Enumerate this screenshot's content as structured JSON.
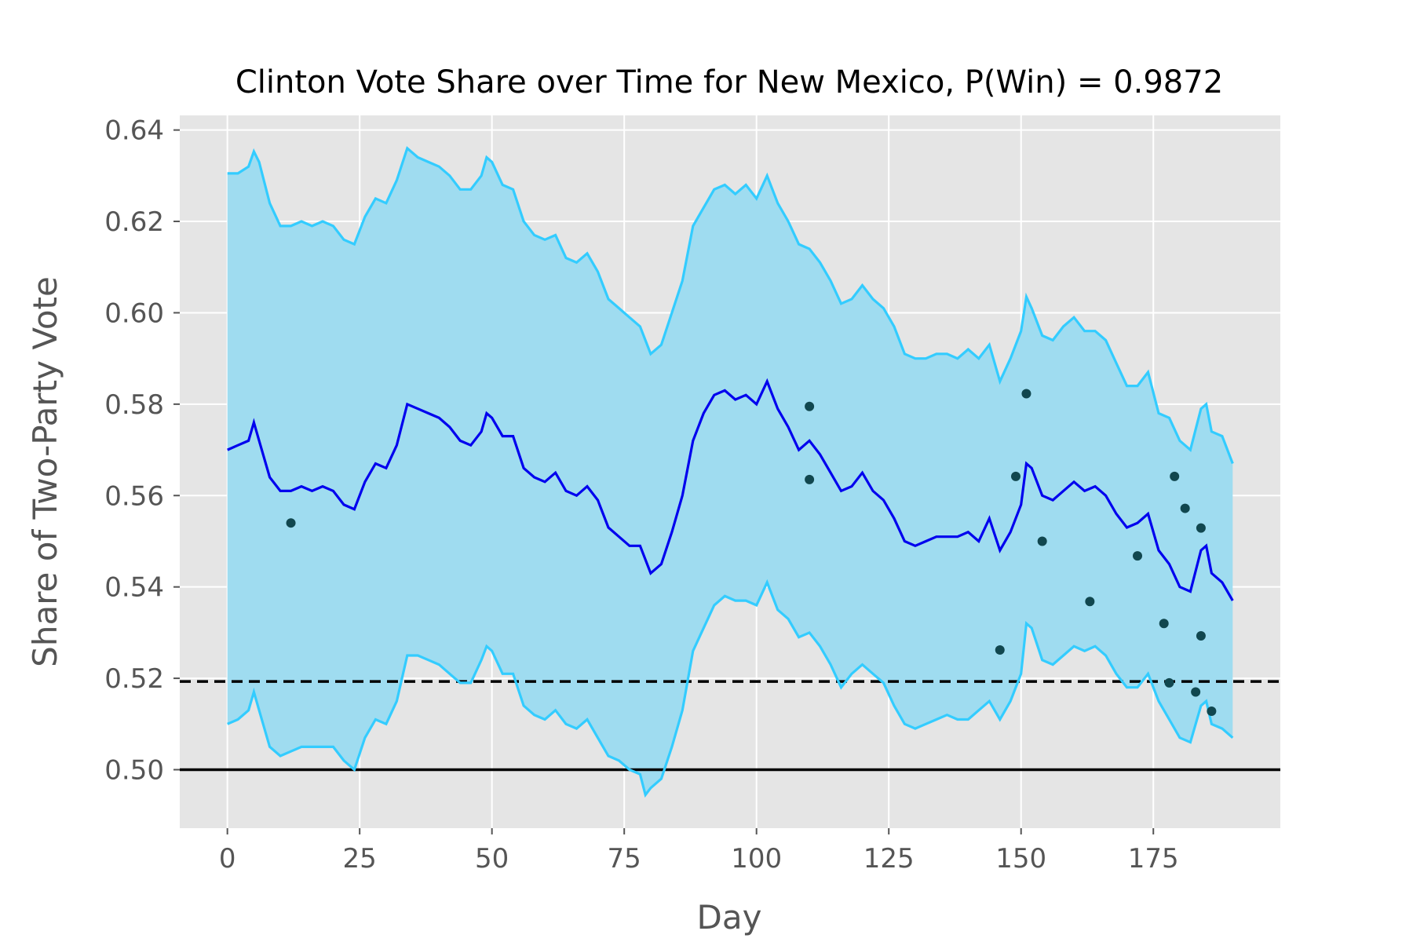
{
  "chart_data": {
    "type": "line",
    "title": "Clinton Vote Share over Time for New Mexico, P(Win) = 0.9872",
    "xlabel": "Day",
    "ylabel": "Share of Two-Party Vote",
    "xlim": [
      -9,
      199
    ],
    "ylim": [
      0.4872,
      0.6432
    ],
    "xticks": [
      0,
      25,
      50,
      75,
      100,
      125,
      150,
      175
    ],
    "yticks": [
      0.5,
      0.52,
      0.54,
      0.56,
      0.58,
      0.6,
      0.62,
      0.64
    ],
    "ytick_labels": [
      "0.50",
      "0.52",
      "0.54",
      "0.56",
      "0.58",
      "0.60",
      "0.62",
      "0.64"
    ],
    "grid": true,
    "background": "#e5e5e5",
    "colors": {
      "mean": "#0000ee",
      "band_line": "#33ccff",
      "band_fill": "#9fdcf0",
      "polls": "#11474f",
      "reference": "#000000"
    },
    "reference_lines": [
      {
        "y": 0.5,
        "style": "solid"
      },
      {
        "y": 0.5193,
        "style": "dashed"
      }
    ],
    "mean_series": {
      "x": [
        0,
        2,
        4,
        5,
        6,
        8,
        10,
        12,
        14,
        16,
        18,
        20,
        22,
        24,
        26,
        28,
        30,
        32,
        34,
        36,
        38,
        40,
        42,
        44,
        46,
        48,
        49,
        50,
        52,
        54,
        56,
        58,
        60,
        62,
        64,
        66,
        68,
        70,
        72,
        74,
        76,
        78,
        80,
        82,
        84,
        86,
        88,
        90,
        92,
        94,
        96,
        98,
        100,
        102,
        104,
        106,
        108,
        110,
        112,
        114,
        116,
        118,
        120,
        122,
        124,
        126,
        128,
        130,
        132,
        134,
        136,
        138,
        140,
        142,
        144,
        146,
        148,
        150,
        151,
        152,
        154,
        156,
        158,
        160,
        162,
        164,
        166,
        168,
        170,
        172,
        174,
        176,
        178,
        180,
        182,
        184,
        185,
        186,
        188,
        190
      ],
      "y": [
        0.57,
        0.571,
        0.572,
        0.576,
        0.572,
        0.564,
        0.561,
        0.561,
        0.562,
        0.561,
        0.562,
        0.561,
        0.558,
        0.557,
        0.563,
        0.567,
        0.566,
        0.571,
        0.58,
        0.579,
        0.578,
        0.577,
        0.575,
        0.572,
        0.571,
        0.574,
        0.578,
        0.577,
        0.573,
        0.573,
        0.566,
        0.564,
        0.563,
        0.565,
        0.561,
        0.56,
        0.562,
        0.559,
        0.553,
        0.551,
        0.549,
        0.549,
        0.543,
        0.545,
        0.552,
        0.56,
        0.572,
        0.578,
        0.582,
        0.583,
        0.581,
        0.582,
        0.58,
        0.585,
        0.579,
        0.575,
        0.57,
        0.572,
        0.569,
        0.565,
        0.561,
        0.562,
        0.565,
        0.561,
        0.559,
        0.555,
        0.55,
        0.549,
        0.55,
        0.551,
        0.551,
        0.551,
        0.552,
        0.55,
        0.555,
        0.548,
        0.552,
        0.558,
        0.567,
        0.566,
        0.56,
        0.559,
        0.561,
        0.563,
        0.561,
        0.562,
        0.56,
        0.556,
        0.553,
        0.554,
        0.556,
        0.548,
        0.545,
        0.54,
        0.539,
        0.548,
        0.549,
        0.543,
        0.541,
        0.537
      ]
    },
    "upper_series": {
      "x": [
        0,
        2,
        4,
        5,
        6,
        8,
        10,
        12,
        14,
        16,
        18,
        20,
        22,
        24,
        26,
        28,
        30,
        32,
        34,
        36,
        38,
        40,
        42,
        44,
        46,
        48,
        49,
        50,
        52,
        54,
        56,
        58,
        60,
        62,
        64,
        66,
        68,
        70,
        72,
        74,
        76,
        78,
        80,
        82,
        84,
        86,
        88,
        90,
        92,
        94,
        96,
        98,
        100,
        102,
        104,
        106,
        108,
        110,
        112,
        114,
        116,
        118,
        120,
        122,
        124,
        126,
        128,
        130,
        132,
        134,
        136,
        138,
        140,
        142,
        144,
        146,
        148,
        150,
        151,
        152,
        154,
        156,
        158,
        160,
        162,
        164,
        166,
        168,
        170,
        172,
        174,
        176,
        178,
        180,
        182,
        184,
        185,
        186,
        188,
        190
      ],
      "y": [
        0.6305,
        0.6305,
        0.632,
        0.6353,
        0.633,
        0.624,
        0.619,
        0.619,
        0.62,
        0.619,
        0.62,
        0.619,
        0.616,
        0.615,
        0.621,
        0.625,
        0.624,
        0.629,
        0.636,
        0.634,
        0.633,
        0.632,
        0.63,
        0.627,
        0.627,
        0.63,
        0.634,
        0.633,
        0.628,
        0.627,
        0.62,
        0.617,
        0.616,
        0.617,
        0.612,
        0.611,
        0.613,
        0.609,
        0.603,
        0.601,
        0.599,
        0.597,
        0.591,
        0.593,
        0.6,
        0.607,
        0.619,
        0.623,
        0.627,
        0.628,
        0.626,
        0.628,
        0.625,
        0.63,
        0.624,
        0.62,
        0.615,
        0.614,
        0.611,
        0.607,
        0.602,
        0.603,
        0.606,
        0.603,
        0.601,
        0.597,
        0.591,
        0.59,
        0.59,
        0.591,
        0.591,
        0.59,
        0.592,
        0.59,
        0.593,
        0.585,
        0.59,
        0.596,
        0.6035,
        0.601,
        0.595,
        0.594,
        0.597,
        0.599,
        0.596,
        0.596,
        0.594,
        0.589,
        0.584,
        0.584,
        0.587,
        0.578,
        0.577,
        0.572,
        0.57,
        0.579,
        0.58,
        0.574,
        0.573,
        0.567
      ]
    },
    "lower_series": {
      "x": [
        0,
        2,
        4,
        5,
        6,
        8,
        10,
        12,
        14,
        16,
        18,
        20,
        22,
        24,
        26,
        28,
        30,
        32,
        34,
        36,
        38,
        40,
        42,
        44,
        46,
        48,
        49,
        50,
        52,
        54,
        56,
        58,
        60,
        62,
        64,
        66,
        68,
        70,
        72,
        74,
        76,
        78,
        79,
        80,
        82,
        84,
        86,
        88,
        90,
        92,
        94,
        96,
        98,
        100,
        102,
        104,
        106,
        108,
        110,
        112,
        114,
        116,
        118,
        120,
        122,
        124,
        126,
        128,
        130,
        132,
        134,
        136,
        138,
        140,
        142,
        144,
        146,
        148,
        150,
        151,
        152,
        154,
        156,
        158,
        160,
        162,
        164,
        166,
        168,
        170,
        172,
        174,
        176,
        178,
        180,
        182,
        184,
        185,
        186,
        188,
        190
      ],
      "y": [
        0.51,
        0.511,
        0.513,
        0.517,
        0.513,
        0.505,
        0.503,
        0.504,
        0.505,
        0.505,
        0.505,
        0.505,
        0.502,
        0.5,
        0.507,
        0.511,
        0.51,
        0.515,
        0.525,
        0.525,
        0.524,
        0.523,
        0.521,
        0.519,
        0.519,
        0.524,
        0.527,
        0.526,
        0.521,
        0.521,
        0.514,
        0.512,
        0.511,
        0.513,
        0.51,
        0.509,
        0.511,
        0.507,
        0.503,
        0.502,
        0.5,
        0.499,
        0.4945,
        0.496,
        0.498,
        0.505,
        0.513,
        0.526,
        0.531,
        0.536,
        0.538,
        0.537,
        0.537,
        0.536,
        0.541,
        0.535,
        0.533,
        0.529,
        0.53,
        0.527,
        0.523,
        0.518,
        0.521,
        0.523,
        0.521,
        0.519,
        0.514,
        0.51,
        0.509,
        0.51,
        0.511,
        0.512,
        0.511,
        0.511,
        0.513,
        0.515,
        0.511,
        0.515,
        0.521,
        0.532,
        0.531,
        0.524,
        0.523,
        0.525,
        0.527,
        0.526,
        0.527,
        0.525,
        0.521,
        0.518,
        0.518,
        0.521,
        0.515,
        0.511,
        0.507,
        0.506,
        0.514,
        0.515,
        0.51,
        0.509,
        0.507
      ]
    },
    "polls": {
      "x": [
        12,
        110,
        110,
        146,
        149,
        151,
        154,
        163,
        172,
        177,
        178,
        179,
        181,
        183,
        184,
        184,
        186
      ],
      "y": [
        0.554,
        0.5795,
        0.5635,
        0.5262,
        0.5642,
        0.5823,
        0.55,
        0.5368,
        0.5468,
        0.532,
        0.519,
        0.5642,
        0.5572,
        0.517,
        0.5529,
        0.5293,
        0.5128
      ]
    }
  }
}
